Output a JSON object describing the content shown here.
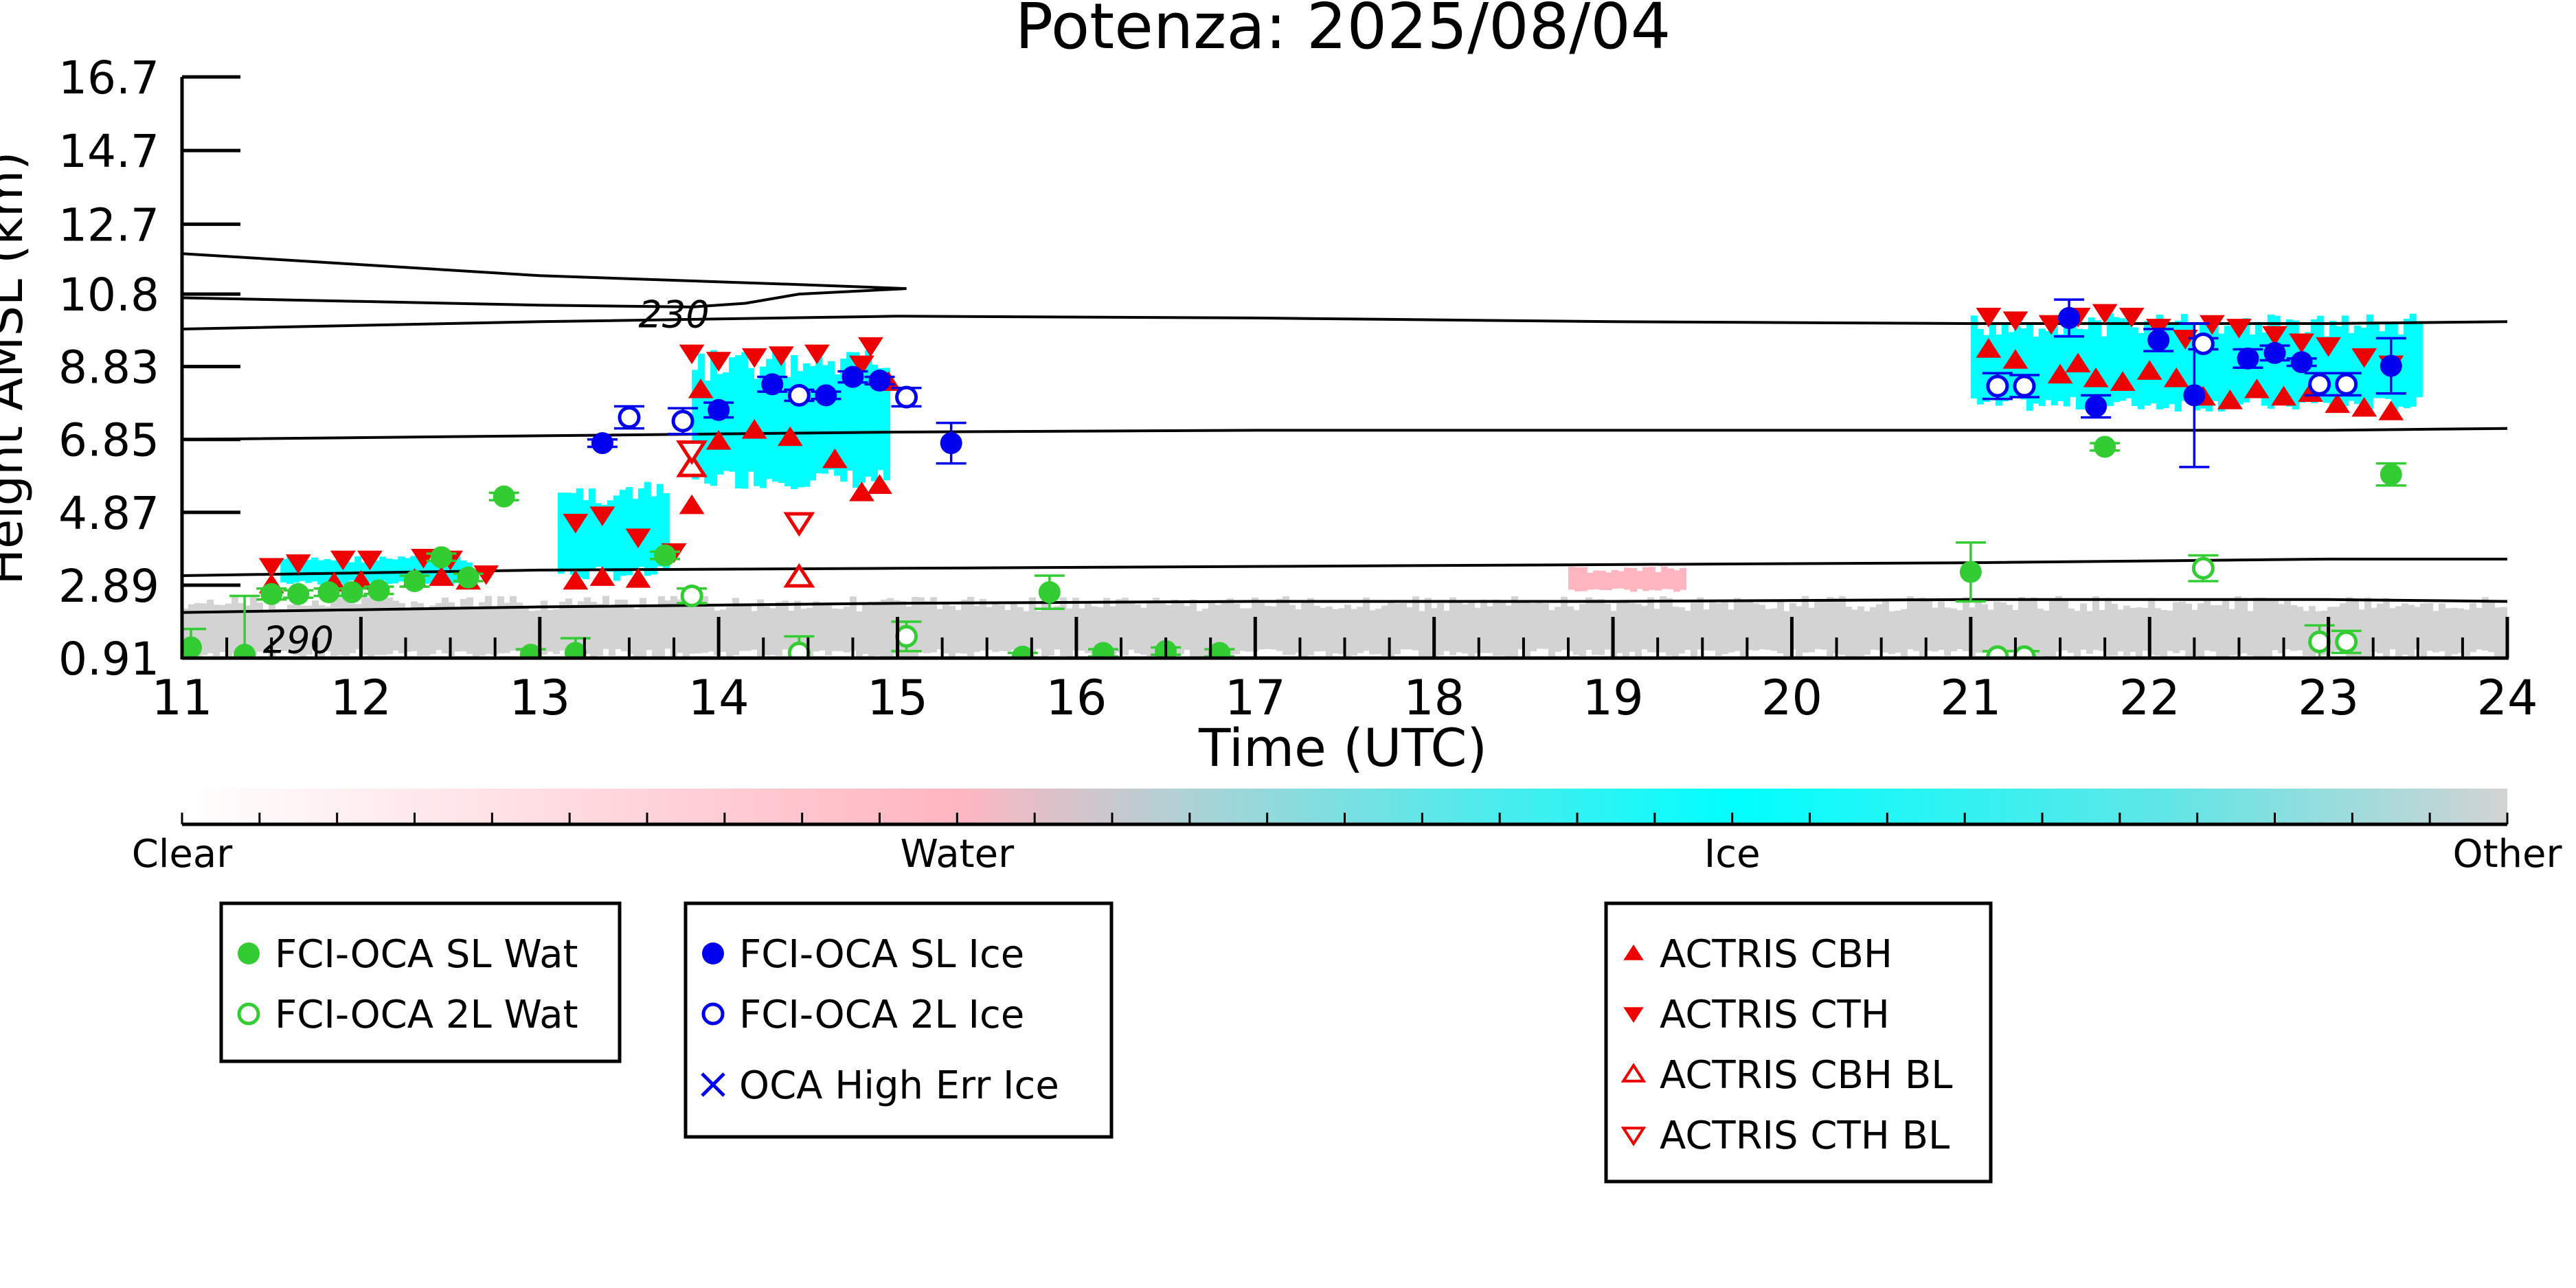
{
  "chart_data": {
    "type": "scatter",
    "title": "Potenza: 2025/08/04",
    "xlabel": "Time (UTC)",
    "ylabel": "Height AMSL (km)",
    "xlim": [
      11,
      24
    ],
    "ylim": [
      0.91,
      16.7
    ],
    "xticks": [
      "11",
      "12",
      "13",
      "14",
      "15",
      "16",
      "17",
      "18",
      "19",
      "20",
      "21",
      "22",
      "23",
      "24"
    ],
    "yticks": [
      "0.91",
      "2.89",
      "4.87",
      "6.85",
      "8.83",
      "10.8",
      "12.7",
      "14.7",
      "16.7"
    ],
    "contour_labels": [
      {
        "text": "230",
        "x": 13.75,
        "y": 9.9
      },
      {
        "text": "290",
        "x": 11.65,
        "y": 1.05
      }
    ],
    "colorbar": {
      "labels": [
        "Clear",
        "Water",
        "Ice",
        "Other"
      ],
      "colors": [
        "#ffffff",
        "#ffb6c1",
        "#00ffff",
        "#d3d3d3"
      ]
    },
    "legend_boxes": [
      [
        {
          "label": "FCI-OCA SL Wat",
          "marker": "filled-circle",
          "color": "#33cc33"
        },
        {
          "label": "FCI-OCA 2L Wat",
          "marker": "open-circle",
          "color": "#33cc33"
        }
      ],
      [
        {
          "label": "FCI-OCA SL Ice",
          "marker": "filled-circle",
          "color": "#0000ee"
        },
        {
          "label": "FCI-OCA 2L Ice",
          "marker": "open-circle",
          "color": "#0000ee"
        },
        {
          "label": "OCA High Err Ice",
          "marker": "x",
          "color": "#0000ee"
        }
      ],
      [
        {
          "label": "ACTRIS CBH",
          "marker": "triangle-up",
          "color": "#ee0000"
        },
        {
          "label": "ACTRIS CTH",
          "marker": "triangle-down",
          "color": "#ee0000"
        },
        {
          "label": "ACTRIS CBH BL",
          "marker": "open-triangle-up",
          "color": "#ee0000"
        },
        {
          "label": "ACTRIS CTH BL",
          "marker": "open-triangle-down",
          "color": "#ee0000"
        }
      ]
    ],
    "series": [
      {
        "name": "FCI-OCA SL Wat",
        "color": "#33cc33",
        "marker": "filled-circle",
        "points": [
          [
            11.05,
            1.2,
            0.5
          ],
          [
            11.35,
            1.0,
            1.6
          ],
          [
            11.5,
            2.65,
            0.15
          ],
          [
            11.65,
            2.65,
            0.1
          ],
          [
            11.82,
            2.7,
            0.1
          ],
          [
            11.95,
            2.7,
            0.1
          ],
          [
            12.1,
            2.75,
            0.1
          ],
          [
            12.3,
            3.0,
            0.15
          ],
          [
            12.45,
            3.65,
            0.1
          ],
          [
            12.6,
            3.1,
            0.1
          ],
          [
            12.8,
            5.3,
            0.1
          ],
          [
            12.95,
            1.0,
            0.15
          ],
          [
            13.2,
            1.05,
            0.4
          ],
          [
            13.7,
            3.7,
            0.1
          ],
          [
            15.7,
            0.95,
            0.1
          ],
          [
            15.85,
            2.7,
            0.45
          ],
          [
            16.15,
            1.05,
            0.1
          ],
          [
            16.5,
            1.1,
            0.1
          ],
          [
            16.8,
            1.05,
            0.1
          ],
          [
            21.0,
            3.25,
            0.8
          ],
          [
            21.75,
            6.65,
            0.1
          ],
          [
            23.35,
            5.9,
            0.3
          ]
        ]
      },
      {
        "name": "FCI-OCA 2L Wat",
        "color": "#33cc33",
        "marker": "open-circle",
        "points": [
          [
            13.85,
            2.6,
            0.2
          ],
          [
            14.45,
            1.05,
            0.45
          ],
          [
            15.05,
            1.5,
            0.4
          ],
          [
            21.15,
            0.95,
            0.15
          ],
          [
            21.3,
            0.95,
            0.15
          ],
          [
            22.3,
            3.35,
            0.35
          ],
          [
            22.95,
            1.35,
            0.45
          ],
          [
            23.1,
            1.35,
            0.3
          ]
        ]
      },
      {
        "name": "FCI-OCA SL Ice",
        "color": "#0000ee",
        "marker": "filled-circle",
        "points": [
          [
            13.35,
            6.75,
            0.1
          ],
          [
            14.0,
            7.65,
            0.2
          ],
          [
            14.3,
            8.35,
            0.2
          ],
          [
            14.6,
            8.05,
            0.1
          ],
          [
            14.75,
            8.55,
            0.15
          ],
          [
            14.9,
            8.45,
            0.1
          ],
          [
            15.3,
            6.75,
            0.55
          ],
          [
            21.55,
            10.15,
            0.5
          ],
          [
            21.7,
            7.75,
            0.3
          ],
          [
            22.05,
            9.55,
            0.3
          ],
          [
            22.25,
            8.05,
            1.95
          ],
          [
            22.55,
            9.05,
            0.25
          ],
          [
            22.7,
            9.2,
            0.2
          ],
          [
            22.85,
            8.95,
            0.1
          ],
          [
            23.35,
            8.85,
            0.75
          ]
        ]
      },
      {
        "name": "FCI-OCA 2L Ice",
        "color": "#0000ee",
        "marker": "open-circle",
        "points": [
          [
            13.5,
            7.45,
            0.3
          ],
          [
            13.8,
            7.35,
            0.35
          ],
          [
            14.45,
            8.05,
            0.15
          ],
          [
            15.05,
            8.0,
            0.25
          ],
          [
            21.15,
            8.3,
            0.35
          ],
          [
            21.3,
            8.3,
            0.3
          ],
          [
            22.3,
            9.45,
            0.15
          ],
          [
            22.95,
            8.35,
            0.3
          ],
          [
            23.1,
            8.35,
            0.3
          ]
        ]
      },
      {
        "name": "ACTRIS CBH",
        "color": "#ee0000",
        "marker": "triangle-up",
        "points": [
          [
            11.5,
            2.9
          ],
          [
            11.85,
            2.95
          ],
          [
            12.0,
            3.0
          ],
          [
            12.3,
            3.05
          ],
          [
            12.45,
            3.1
          ],
          [
            12.6,
            3.0
          ],
          [
            13.2,
            3.0
          ],
          [
            13.35,
            3.1
          ],
          [
            13.55,
            3.05
          ],
          [
            13.85,
            5.05
          ],
          [
            13.9,
            8.2
          ],
          [
            14.0,
            6.8
          ],
          [
            14.2,
            7.1
          ],
          [
            14.4,
            6.9
          ],
          [
            14.65,
            6.3
          ],
          [
            14.8,
            5.4
          ],
          [
            14.9,
            5.6
          ],
          [
            14.95,
            8.4
          ],
          [
            21.1,
            9.3
          ],
          [
            21.25,
            9.0
          ],
          [
            21.5,
            8.6
          ],
          [
            21.6,
            8.9
          ],
          [
            21.7,
            8.5
          ],
          [
            21.85,
            8.4
          ],
          [
            22.0,
            8.7
          ],
          [
            22.15,
            8.5
          ],
          [
            22.3,
            8.0
          ],
          [
            22.45,
            7.9
          ],
          [
            22.6,
            8.2
          ],
          [
            22.75,
            8.0
          ],
          [
            22.9,
            8.1
          ],
          [
            23.05,
            7.8
          ],
          [
            23.2,
            7.7
          ],
          [
            23.35,
            7.6
          ]
        ]
      },
      {
        "name": "ACTRIS CTH",
        "color": "#ee0000",
        "marker": "triangle-down",
        "points": [
          [
            11.5,
            3.4
          ],
          [
            11.65,
            3.5
          ],
          [
            11.9,
            3.6
          ],
          [
            12.05,
            3.6
          ],
          [
            12.35,
            3.65
          ],
          [
            12.5,
            3.6
          ],
          [
            12.7,
            3.2
          ],
          [
            13.2,
            4.6
          ],
          [
            13.35,
            4.8
          ],
          [
            13.55,
            4.2
          ],
          [
            13.75,
            3.8
          ],
          [
            13.85,
            9.2
          ],
          [
            14.0,
            9.0
          ],
          [
            14.2,
            9.1
          ],
          [
            14.35,
            9.15
          ],
          [
            14.55,
            9.2
          ],
          [
            14.8,
            8.9
          ],
          [
            14.85,
            9.4
          ],
          [
            21.1,
            10.2
          ],
          [
            21.25,
            10.1
          ],
          [
            21.45,
            10.0
          ],
          [
            21.6,
            10.2
          ],
          [
            21.75,
            10.3
          ],
          [
            21.9,
            10.2
          ],
          [
            22.05,
            9.9
          ],
          [
            22.2,
            9.6
          ],
          [
            22.35,
            10.0
          ],
          [
            22.5,
            9.9
          ],
          [
            22.7,
            9.7
          ],
          [
            22.85,
            9.5
          ],
          [
            23.0,
            9.4
          ],
          [
            23.2,
            9.1
          ],
          [
            23.35,
            8.9
          ]
        ]
      },
      {
        "name": "ACTRIS CBH BL",
        "color": "#ee0000",
        "marker": "open-triangle-up",
        "points": [
          [
            13.85,
            6.1
          ],
          [
            14.45,
            3.1
          ]
        ]
      },
      {
        "name": "ACTRIS CTH BL",
        "color": "#ee0000",
        "marker": "open-triangle-down",
        "points": [
          [
            13.85,
            6.55
          ],
          [
            14.45,
            4.6
          ]
        ]
      },
      {
        "name": "OCA High Err Ice",
        "color": "#0000ee",
        "marker": "x",
        "points": []
      }
    ],
    "contours": [
      [
        [
          11,
          11.9
        ],
        [
          12,
          11.6
        ],
        [
          13,
          11.3
        ],
        [
          14.5,
          11.05
        ],
        [
          15.05,
          10.95
        ],
        [
          14.45,
          10.8
        ],
        [
          14.15,
          10.55
        ],
        [
          13.85,
          10.45
        ],
        [
          13.0,
          10.5
        ],
        [
          12.0,
          10.6
        ],
        [
          11,
          10.7
        ]
      ],
      [
        [
          11,
          9.85
        ],
        [
          13,
          10.05
        ],
        [
          15,
          10.2
        ],
        [
          17,
          10.15
        ],
        [
          19,
          10.05
        ],
        [
          21,
          10.0
        ],
        [
          23,
          10.0
        ],
        [
          24,
          10.05
        ]
      ],
      [
        [
          11,
          6.85
        ],
        [
          13,
          6.95
        ],
        [
          15,
          7.05
        ],
        [
          17,
          7.1
        ],
        [
          19,
          7.1
        ],
        [
          21,
          7.1
        ],
        [
          23,
          7.1
        ],
        [
          24,
          7.15
        ]
      ],
      [
        [
          11,
          3.15
        ],
        [
          13,
          3.3
        ],
        [
          15,
          3.35
        ],
        [
          17,
          3.4
        ],
        [
          19,
          3.45
        ],
        [
          21,
          3.5
        ],
        [
          23,
          3.6
        ],
        [
          24,
          3.6
        ]
      ],
      [
        [
          11,
          2.15
        ],
        [
          13,
          2.3
        ],
        [
          15,
          2.4
        ],
        [
          17,
          2.45
        ],
        [
          19,
          2.45
        ],
        [
          21,
          2.5
        ],
        [
          23,
          2.5
        ],
        [
          24,
          2.45
        ]
      ]
    ],
    "cloud_mask_regions": [
      {
        "class": "Ice",
        "color": "#00ffff",
        "x": [
          11.55,
          12.6
        ],
        "y": [
          2.9,
          3.7
        ]
      },
      {
        "class": "Ice",
        "color": "#00ffff",
        "x": [
          13.1,
          13.7
        ],
        "y": [
          3.0,
          5.7
        ]
      },
      {
        "class": "Ice",
        "color": "#00ffff",
        "x": [
          13.85,
          14.95
        ],
        "y": [
          5.5,
          9.3
        ]
      },
      {
        "class": "Ice",
        "color": "#00ffff",
        "x": [
          21.0,
          23.5
        ],
        "y": [
          7.6,
          10.3
        ]
      },
      {
        "class": "Other",
        "color": "#d3d3d3",
        "x": [
          11.0,
          24.0
        ],
        "y": [
          0.91,
          2.6
        ]
      },
      {
        "class": "Water",
        "color": "#ffb6c1",
        "x": [
          18.75,
          19.4
        ],
        "y": [
          2.7,
          3.4
        ]
      }
    ]
  }
}
